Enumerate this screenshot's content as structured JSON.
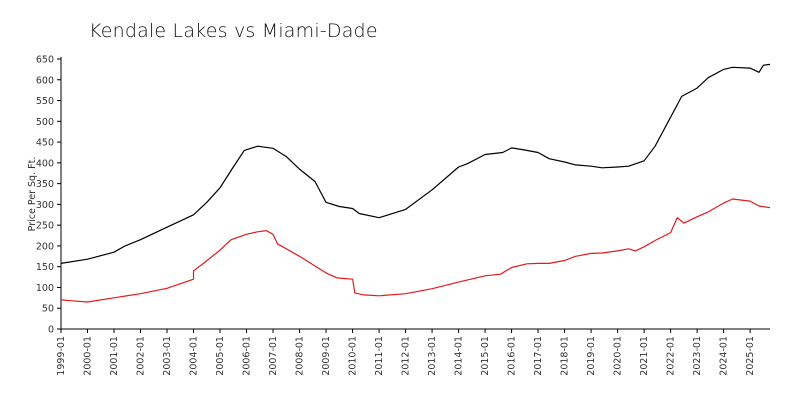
{
  "chart_data": {
    "type": "line",
    "title": "Kendale Lakes vs Miami-Dade",
    "xlabel": "",
    "ylabel": "Price Per Sq. Ft.",
    "ylim": [
      0,
      650
    ],
    "y_ticks": [
      0,
      50,
      100,
      150,
      200,
      250,
      300,
      350,
      400,
      450,
      500,
      550,
      600,
      650
    ],
    "x_range": [
      "1999-01",
      "2025-10"
    ],
    "x_tick_labels": [
      "1999-01",
      "2000-01",
      "2001-01",
      "2002-01",
      "2003-01",
      "2004-01",
      "2005-01",
      "2006-01",
      "2007-01",
      "2008-01",
      "2009-01",
      "2010-01",
      "2011-01",
      "2012-01",
      "2013-01",
      "2014-01",
      "2015-01",
      "2016-01",
      "2017-01",
      "2018-01",
      "2019-01",
      "2020-01",
      "2021-01",
      "2022-01",
      "2023-01",
      "2024-01",
      "2025-01"
    ],
    "grid": false,
    "legend": "none",
    "series": [
      {
        "color": "#000000",
        "points": [
          [
            "1999-01",
            158
          ],
          [
            "2000-01",
            168
          ],
          [
            "2001-01",
            185
          ],
          [
            "2001-06",
            200
          ],
          [
            "2002-01",
            215
          ],
          [
            "2003-01",
            245
          ],
          [
            "2004-01",
            275
          ],
          [
            "2004-07",
            305
          ],
          [
            "2005-01",
            340
          ],
          [
            "2005-07",
            390
          ],
          [
            "2005-12",
            430
          ],
          [
            "2006-06",
            440
          ],
          [
            "2007-01",
            435
          ],
          [
            "2007-07",
            415
          ],
          [
            "2008-01",
            385
          ],
          [
            "2008-08",
            355
          ],
          [
            "2009-01",
            305
          ],
          [
            "2009-07",
            295
          ],
          [
            "2010-01",
            290
          ],
          [
            "2010-04",
            278
          ],
          [
            "2011-01",
            268
          ],
          [
            "2012-01",
            288
          ],
          [
            "2013-01",
            335
          ],
          [
            "2014-01",
            390
          ],
          [
            "2014-05",
            398
          ],
          [
            "2015-01",
            420
          ],
          [
            "2015-09",
            425
          ],
          [
            "2016-01",
            436
          ],
          [
            "2016-06",
            432
          ],
          [
            "2017-01",
            425
          ],
          [
            "2017-06",
            410
          ],
          [
            "2018-01",
            402
          ],
          [
            "2018-06",
            395
          ],
          [
            "2019-01",
            392
          ],
          [
            "2019-06",
            388
          ],
          [
            "2020-01",
            390
          ],
          [
            "2020-06",
            392
          ],
          [
            "2021-01",
            405
          ],
          [
            "2021-06",
            440
          ],
          [
            "2022-01",
            510
          ],
          [
            "2022-06",
            560
          ],
          [
            "2023-01",
            580
          ],
          [
            "2023-06",
            605
          ],
          [
            "2024-01",
            625
          ],
          [
            "2024-05",
            630
          ],
          [
            "2025-01",
            628
          ],
          [
            "2025-05",
            618
          ],
          [
            "2025-07",
            635
          ],
          [
            "2025-10",
            637
          ]
        ]
      },
      {
        "color": "#e31a1c",
        "points": [
          [
            "1999-01",
            70
          ],
          [
            "1999-06",
            68
          ],
          [
            "2000-01",
            65
          ],
          [
            "2001-01",
            75
          ],
          [
            "2002-01",
            85
          ],
          [
            "2003-01",
            98
          ],
          [
            "2004-01",
            120
          ],
          [
            "2004-01",
            140
          ],
          [
            "2004-06",
            160
          ],
          [
            "2005-01",
            190
          ],
          [
            "2005-06",
            215
          ],
          [
            "2006-01",
            228
          ],
          [
            "2006-06",
            234
          ],
          [
            "2006-10",
            237
          ],
          [
            "2007-01",
            228
          ],
          [
            "2007-03",
            205
          ],
          [
            "2008-01",
            175
          ],
          [
            "2008-07",
            155
          ],
          [
            "2009-01",
            135
          ],
          [
            "2009-06",
            123
          ],
          [
            "2010-01",
            120
          ],
          [
            "2010-02",
            87
          ],
          [
            "2010-06",
            82
          ],
          [
            "2011-01",
            80
          ],
          [
            "2012-01",
            85
          ],
          [
            "2013-01",
            97
          ],
          [
            "2014-01",
            113
          ],
          [
            "2015-01",
            128
          ],
          [
            "2015-08",
            132
          ],
          [
            "2016-01",
            148
          ],
          [
            "2016-08",
            157
          ],
          [
            "2017-01",
            158
          ],
          [
            "2017-06",
            158
          ],
          [
            "2018-01",
            165
          ],
          [
            "2018-06",
            175
          ],
          [
            "2019-01",
            182
          ],
          [
            "2019-06",
            183
          ],
          [
            "2020-01",
            188
          ],
          [
            "2020-06",
            193
          ],
          [
            "2020-09",
            188
          ],
          [
            "2021-01",
            198
          ],
          [
            "2021-06",
            213
          ],
          [
            "2022-01",
            232
          ],
          [
            "2022-04",
            268
          ],
          [
            "2022-07",
            255
          ],
          [
            "2023-01",
            270
          ],
          [
            "2023-06",
            282
          ],
          [
            "2024-01",
            303
          ],
          [
            "2024-05",
            313
          ],
          [
            "2025-01",
            308
          ],
          [
            "2025-05",
            296
          ],
          [
            "2025-10",
            292
          ]
        ]
      }
    ]
  }
}
